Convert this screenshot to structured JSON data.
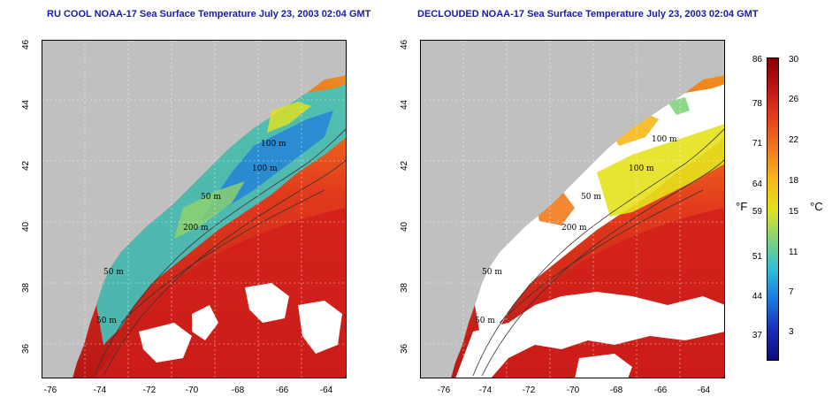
{
  "left_panel": {
    "title": "RU COOL NOAA-17 Sea Surface Temperature July 23, 2003 02:04 GMT"
  },
  "right_panel": {
    "title": "DECLOUDED NOAA-17 Sea Surface Temperature July 23, 2003 02:04 GMT"
  },
  "axes": {
    "lon_ticks": [
      "-76",
      "-74",
      "-72",
      "-70",
      "-68",
      "-66",
      "-64"
    ],
    "lat_ticks": [
      "46",
      "44",
      "42",
      "40",
      "38",
      "36"
    ]
  },
  "contours": {
    "labels": [
      "100 m",
      "100 m",
      "50 m",
      "200 m",
      "50 m",
      "50 m"
    ]
  },
  "colorbar": {
    "fahrenheit_ticks": [
      "86",
      "78",
      "71",
      "64",
      "59",
      "51",
      "44",
      "37"
    ],
    "celsius_ticks": [
      "30",
      "26",
      "22",
      "18",
      "15",
      "11",
      "7",
      "3"
    ],
    "unit_f": "°F",
    "unit_c": "°C",
    "colors": [
      "#8b0000",
      "#c0141a",
      "#e8401c",
      "#f27a1e",
      "#f6b81a",
      "#e4e21c",
      "#7fd47a",
      "#2fbfd6",
      "#1a78e0",
      "#1a2fb8",
      "#0b0b7a"
    ]
  },
  "land_color": "#c0c0c0",
  "cloud_color": "#ffffff"
}
